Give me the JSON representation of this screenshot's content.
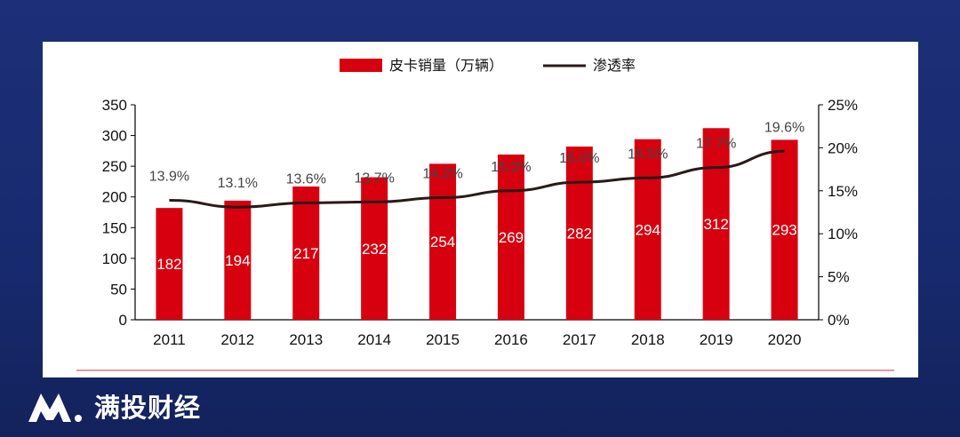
{
  "brand": {
    "name": "满投财经",
    "logo_icon": "mt-logo-icon"
  },
  "colors": {
    "bar": "#d7000f",
    "line": "#2a1a1a",
    "background": "#1c2f78",
    "panel": "#ffffff",
    "rule": "#d06060"
  },
  "chart_data": {
    "type": "bar",
    "categories": [
      "2011",
      "2012",
      "2013",
      "2014",
      "2015",
      "2016",
      "2017",
      "2018",
      "2019",
      "2020"
    ],
    "series": [
      {
        "name": "皮卡销量（万辆）",
        "type": "bar",
        "axis": "left",
        "values": [
          182,
          194,
          217,
          232,
          254,
          269,
          282,
          294,
          312,
          293
        ],
        "labels": [
          "182",
          "194",
          "217",
          "232",
          "254",
          "269",
          "282",
          "294",
          "312",
          "293"
        ]
      },
      {
        "name": "渗透率",
        "type": "line",
        "axis": "right",
        "values": [
          13.9,
          13.1,
          13.6,
          13.7,
          14.2,
          15.0,
          16.0,
          16.5,
          17.7,
          19.6
        ],
        "labels": [
          "13.9%",
          "13.1%",
          "13.6%",
          "13.7%",
          "14.2%",
          "15.0%",
          "16.0%",
          "16.5%",
          "17.7%",
          "19.6%"
        ]
      }
    ],
    "ylim": [
      0,
      350
    ],
    "y_ticks": [
      "0",
      "50",
      "100",
      "150",
      "200",
      "250",
      "300",
      "350"
    ],
    "y2lim": [
      0,
      25
    ],
    "y2_ticks": [
      "0%",
      "5%",
      "10%",
      "15%",
      "20%",
      "25%"
    ],
    "legend_position": "top-center",
    "grid": false
  }
}
